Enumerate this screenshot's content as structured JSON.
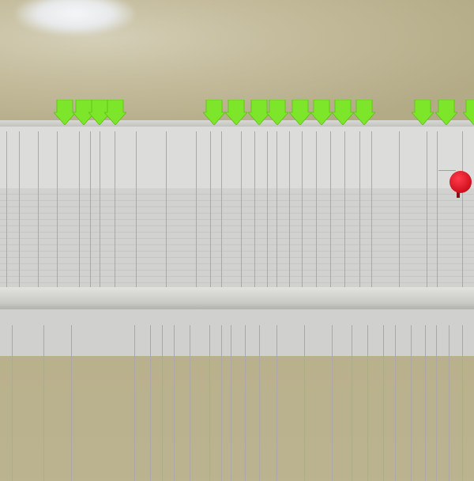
{
  "colors": {
    "wall": "#b9b08c",
    "sticky_note_green": "#7ee62a",
    "paper": "#d9dad8",
    "pin_red": "#d0101e"
  },
  "sticky_notes": {
    "count": 15,
    "shape": "arrow-down"
  },
  "pin": {
    "icon": "push-pin-icon"
  }
}
